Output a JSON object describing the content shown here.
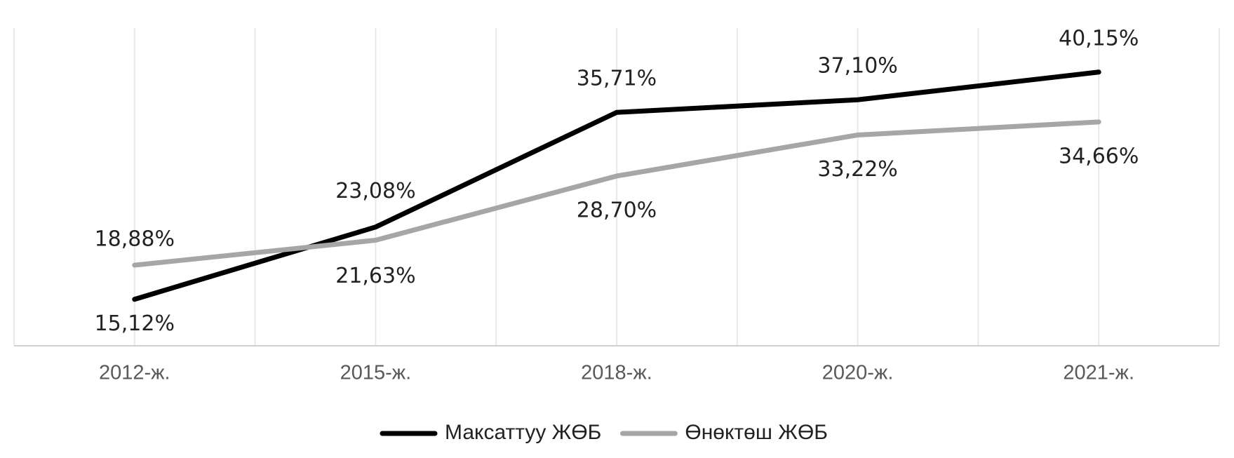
{
  "chart_data": {
    "type": "line",
    "categories": [
      "2012-ж.",
      "2015-ж.",
      "2018-ж.",
      "2020-ж.",
      "2021-ж."
    ],
    "series": [
      {
        "name": "Максаттуу ЖӨБ",
        "color": "#000000",
        "values": [
          15.12,
          23.08,
          35.71,
          37.1,
          40.15
        ],
        "value_labels": [
          "15,12%",
          "23,08%",
          "35,71%",
          "37,10%",
          "40,15%"
        ]
      },
      {
        "name": "Өнөктөш ЖӨБ",
        "color": "#a6a6a6",
        "values": [
          18.88,
          21.63,
          28.7,
          33.22,
          34.66
        ],
        "value_labels": [
          "18,88%",
          "21,63%",
          "28,70%",
          "33,22%",
          "34,66%"
        ]
      }
    ],
    "ylim": [
      10,
      45
    ],
    "grid": true,
    "legend": "bottom"
  }
}
